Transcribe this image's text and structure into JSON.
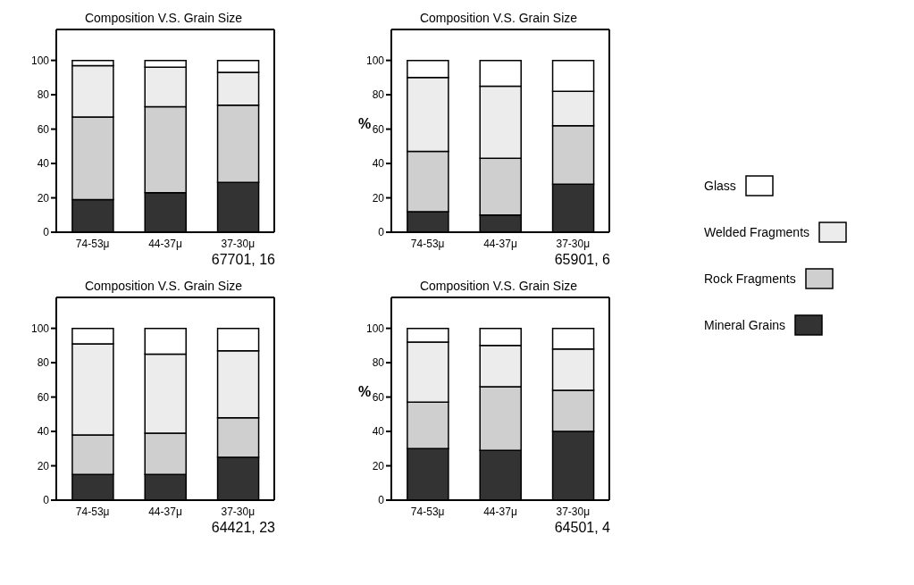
{
  "chart_data": [
    {
      "type": "bar",
      "stacked": true,
      "title": "Composition V.S. Grain Size",
      "xlabel": "67701, 16",
      "categories": [
        "74-53μ",
        "44-37μ",
        "37-30μ"
      ],
      "ylim": [
        0,
        118
      ],
      "yticks": [
        0,
        20,
        40,
        60,
        80,
        100
      ],
      "series": [
        {
          "color": "#333333",
          "values": [
            19,
            23,
            29
          ]
        },
        {
          "color": "#cfcfcf",
          "values": [
            48,
            50,
            45
          ]
        },
        {
          "color": "#ececec",
          "values": [
            30,
            23,
            19
          ]
        },
        {
          "color": "#ffffff",
          "values": [
            3,
            4,
            7
          ]
        }
      ]
    },
    {
      "type": "bar",
      "stacked": true,
      "title": "Composition V.S. Grain Size",
      "xlabel": "65901, 6",
      "ylabel": "%",
      "legend": "right",
      "categories": [
        "74-53μ",
        "44-37μ",
        "37-30μ"
      ],
      "ylim": [
        0,
        118
      ],
      "yticks": [
        0,
        20,
        40,
        60,
        80,
        100
      ],
      "series": [
        {
          "name": "Mineral Grains",
          "color": "#333333",
          "values": [
            12,
            10,
            28
          ]
        },
        {
          "name": "Rock Fragments",
          "color": "#cfcfcf",
          "values": [
            35,
            33,
            34
          ]
        },
        {
          "name": "Welded Fragments",
          "color": "#ececec",
          "values": [
            43,
            42,
            20
          ]
        },
        {
          "name": "Glass",
          "color": "#ffffff",
          "values": [
            10,
            15,
            18
          ]
        }
      ]
    },
    {
      "type": "bar",
      "stacked": true,
      "title": "Composition V.S. Grain Size",
      "xlabel": "64421, 23",
      "categories": [
        "74-53μ",
        "44-37μ",
        "37-30μ"
      ],
      "ylim": [
        0,
        118
      ],
      "yticks": [
        0,
        20,
        40,
        60,
        80,
        100
      ],
      "series": [
        {
          "color": "#333333",
          "values": [
            15,
            15,
            25
          ]
        },
        {
          "color": "#cfcfcf",
          "values": [
            23,
            24,
            23
          ]
        },
        {
          "color": "#ececec",
          "values": [
            53,
            46,
            39
          ]
        },
        {
          "color": "#ffffff",
          "values": [
            9,
            15,
            13
          ]
        }
      ]
    },
    {
      "type": "bar",
      "stacked": true,
      "title": "Composition V.S. Grain Size",
      "xlabel": "64501, 4",
      "ylabel": "%",
      "categories": [
        "74-53μ",
        "44-37μ",
        "37-30μ"
      ],
      "ylim": [
        0,
        118
      ],
      "yticks": [
        0,
        20,
        40,
        60,
        80,
        100
      ],
      "series": [
        {
          "color": "#333333",
          "values": [
            30,
            29,
            40
          ]
        },
        {
          "color": "#cfcfcf",
          "values": [
            27,
            37,
            24
          ]
        },
        {
          "color": "#ececec",
          "values": [
            35,
            24,
            24
          ]
        },
        {
          "color": "#ffffff",
          "values": [
            8,
            10,
            12
          ]
        }
      ]
    }
  ]
}
